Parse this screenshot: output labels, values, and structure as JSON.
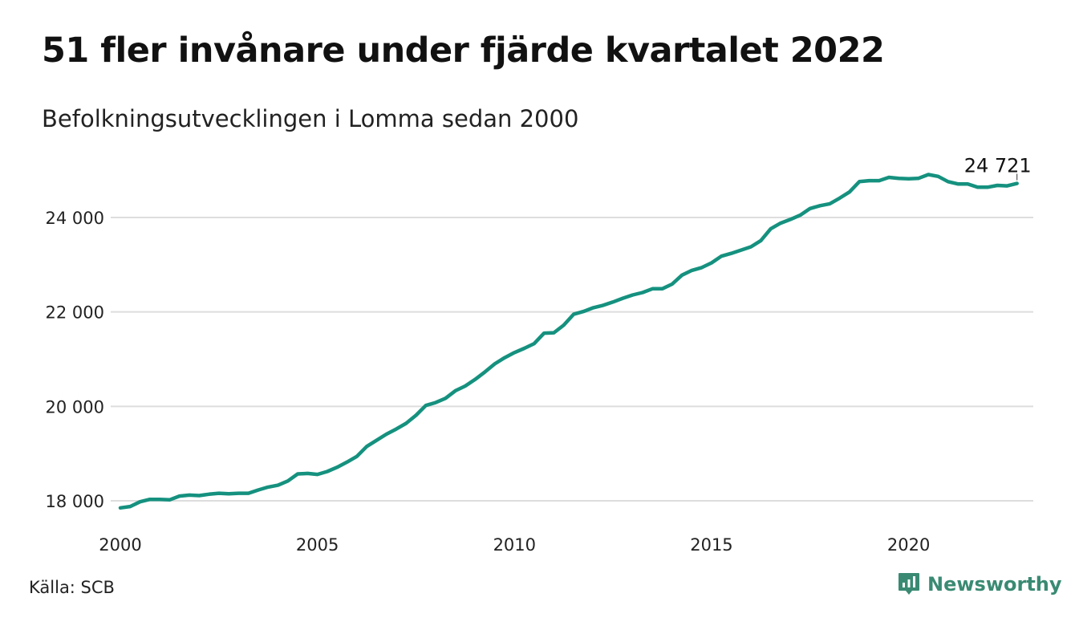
{
  "title": "51 fler invånare under fjärde kvartalet 2022",
  "subtitle": "Befolkningsutvecklingen i Lomma sedan 2000",
  "source": "Källa: SCB",
  "brand": "Newsworthy",
  "colors": {
    "line": "#15917f",
    "grid": "#dddddd",
    "brand": "#3a8a73"
  },
  "chart_data": {
    "type": "line",
    "title": "51 fler invånare under fjärde kvartalet 2022",
    "subtitle": "Befolkningsutvecklingen i Lomma sedan 2000",
    "xlabel": "",
    "ylabel": "",
    "xlim": [
      2000,
      2023
    ],
    "ylim": [
      17800,
      25200
    ],
    "x_ticks": [
      2000,
      2005,
      2010,
      2015,
      2020
    ],
    "x_tick_labels": [
      "2000",
      "2005",
      "2010",
      "2015",
      "2020"
    ],
    "y_ticks": [
      18000,
      20000,
      22000,
      24000
    ],
    "y_tick_labels": [
      "18 000",
      "20 000",
      "22 000",
      "24 000"
    ],
    "grid": true,
    "legend": "none",
    "end_label": "24 721",
    "series": [
      {
        "start_year": 2000,
        "points_per_year": 4,
        "values": [
          17850,
          17880,
          17980,
          18030,
          18030,
          18020,
          18100,
          18120,
          18110,
          18140,
          18160,
          18150,
          18160,
          18160,
          18230,
          18290,
          18330,
          18420,
          18570,
          18580,
          18560,
          18620,
          18710,
          18820,
          18940,
          19150,
          19280,
          19410,
          19520,
          19640,
          19810,
          20020,
          20080,
          20170,
          20330,
          20430,
          20570,
          20730,
          20900,
          21030,
          21140,
          21230,
          21330,
          21550,
          21560,
          21720,
          21950,
          22010,
          22090,
          22140,
          22210,
          22290,
          22360,
          22410,
          22490,
          22490,
          22590,
          22780,
          22880,
          22940,
          23040,
          23180,
          23240,
          23310,
          23380,
          23510,
          23760,
          23880,
          23960,
          24050,
          24190,
          24250,
          24290,
          24410,
          24540,
          24760,
          24780,
          24780,
          24850,
          24830,
          24820,
          24830,
          24910,
          24870,
          24760,
          24710,
          24710,
          24640,
          24640,
          24680,
          24670,
          24721
        ]
      }
    ]
  }
}
